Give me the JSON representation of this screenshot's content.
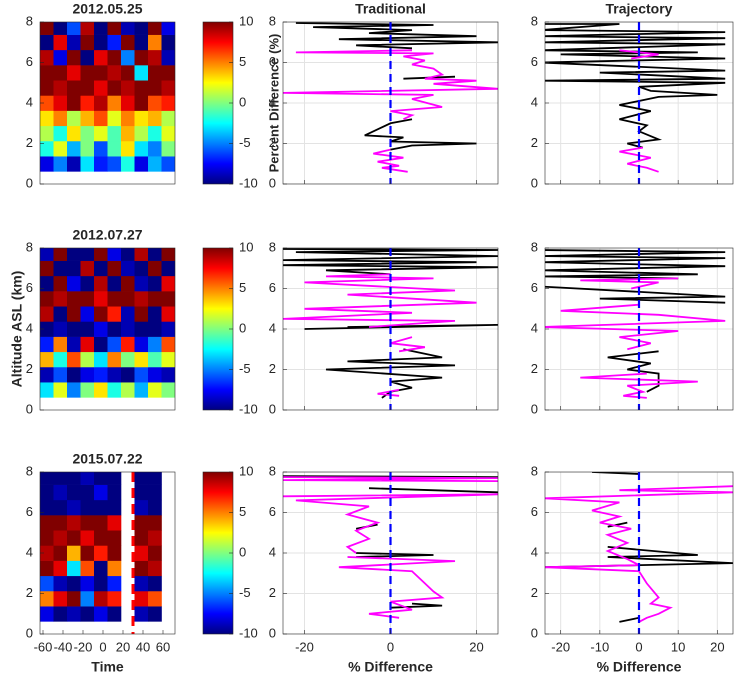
{
  "chart_data": [
    {
      "type": "heatmap",
      "title": "2012.05.25",
      "ylim": [
        0,
        8
      ],
      "yticks": [
        0,
        2,
        4,
        6,
        8
      ],
      "clim": [
        -10,
        10
      ],
      "cticks": [
        -10,
        -5,
        0,
        5,
        10
      ],
      "clabel": "Percent Difference (%)",
      "y": [
        1,
        1.75,
        2.5,
        3.25,
        4,
        4.75,
        5.5,
        6.25,
        7,
        7.75
      ],
      "z": [
        [
          -8,
          -5,
          -9,
          -3,
          -7,
          -6,
          -2,
          -8,
          -4,
          -6
        ],
        [
          -2,
          2,
          -4,
          0,
          -6,
          -1,
          3,
          -3,
          -5,
          0
        ],
        [
          1,
          -2,
          3,
          0,
          2,
          -1,
          4,
          1,
          -2,
          2
        ],
        [
          3,
          5,
          1,
          4,
          6,
          2,
          5,
          3,
          4,
          1
        ],
        [
          6,
          8,
          10,
          7,
          9,
          5,
          8,
          10,
          6,
          7
        ],
        [
          10,
          9,
          10,
          10,
          8,
          10,
          9,
          10,
          10,
          9
        ],
        [
          10,
          10,
          8,
          10,
          10,
          9,
          10,
          -3,
          10,
          10
        ],
        [
          9,
          -8,
          10,
          -10,
          8,
          10,
          -5,
          10,
          9,
          -9
        ],
        [
          -10,
          8,
          -9,
          10,
          -10,
          -7,
          10,
          -10,
          5,
          -10
        ],
        [
          10,
          -10,
          -6,
          9,
          -10,
          10,
          -9,
          -10,
          10,
          -8
        ]
      ]
    },
    {
      "type": "profile",
      "title": "Traditional",
      "xlim": [
        -25,
        25
      ],
      "xticks": [
        -20,
        0,
        20
      ],
      "xticklabels": false,
      "ylim": [
        0,
        8
      ],
      "yticks": [
        0,
        2,
        4,
        6,
        8
      ],
      "grid": true,
      "zero_line": {
        "x": 0,
        "color": "#0000ff"
      },
      "series": [
        {
          "color": "#000000",
          "x": [
            -22,
            10,
            -18,
            5,
            -5,
            20,
            -12,
            25,
            -8,
            5,
            null,
            15,
            3,
            null,
            5,
            0,
            -6,
            3,
            0,
            20,
            5,
            0
          ],
          "y": [
            7.95,
            7.85,
            7.75,
            7.6,
            7.45,
            7.3,
            7.15,
            7.0,
            6.85,
            6.7,
            null,
            5.3,
            5.2,
            null,
            3.2,
            3.0,
            2.4,
            2.3,
            2.1,
            2.0,
            1.9,
            1.7
          ]
        },
        {
          "color": "#ff00ff",
          "x": [
            5,
            -22,
            10,
            3,
            8,
            5,
            10,
            12,
            8,
            20,
            10,
            25,
            -25,
            10,
            5,
            12,
            0,
            5,
            3,
            null,
            0,
            -4,
            3,
            -3,
            2,
            -2,
            4
          ],
          "y": [
            6.6,
            6.5,
            6.45,
            6.3,
            6.1,
            5.9,
            5.7,
            5.4,
            5.2,
            5.1,
            4.95,
            4.7,
            4.5,
            4.4,
            4.2,
            3.8,
            3.6,
            3.4,
            3.2,
            null,
            1.7,
            1.5,
            1.3,
            1.1,
            0.9,
            0.8,
            0.6
          ]
        }
      ]
    },
    {
      "type": "profile",
      "title": "Trajectory",
      "xlim": [
        -24,
        24
      ],
      "xticks": [
        -20,
        -10,
        0,
        10,
        20
      ],
      "xticklabels": false,
      "ylim": [
        0,
        8
      ],
      "yticks": [
        0,
        2,
        4,
        6,
        8
      ],
      "grid": true,
      "zero_line": {
        "x": 0,
        "color": "#0000ff"
      },
      "series": [
        {
          "color": "#000000",
          "x": [
            -25,
            -5,
            -25,
            22,
            -25,
            22,
            -25,
            22,
            -25,
            15,
            -20,
            22,
            -25,
            22,
            -10,
            22,
            -25,
            22,
            0,
            3,
            20,
            5,
            -5,
            3,
            -5,
            2,
            0,
            5,
            -3,
            1
          ],
          "y": [
            7.9,
            7.9,
            7.6,
            7.5,
            7.3,
            7.2,
            7.0,
            6.9,
            6.6,
            6.5,
            6.4,
            6.2,
            6.0,
            5.6,
            5.5,
            5.2,
            5.1,
            5.0,
            4.8,
            4.6,
            4.4,
            4.3,
            3.9,
            3.6,
            3.2,
            2.9,
            2.6,
            2.2,
            2.0,
            1.8
          ]
        },
        {
          "color": "#ff00ff",
          "x": [
            -5,
            5,
            -2,
            null,
            1,
            -5,
            3,
            -3,
            2,
            5
          ],
          "y": [
            6.6,
            6.4,
            6.2,
            null,
            1.8,
            1.6,
            1.3,
            1.0,
            0.8,
            0.6
          ]
        }
      ]
    },
    {
      "type": "heatmap",
      "title": "2012.07.27",
      "ylabel": "Altitude ASL (km)",
      "ylim": [
        0,
        8
      ],
      "yticks": [
        0,
        2,
        4,
        6,
        8
      ],
      "clim": [
        -10,
        10
      ],
      "cticks": [
        -10,
        -5,
        0,
        5,
        10
      ],
      "y": [
        1,
        1.75,
        2.5,
        3.25,
        4,
        4.75,
        5.5,
        6.25,
        7,
        7.75
      ],
      "z": [
        [
          -3,
          2,
          -5,
          0,
          3,
          -2,
          1,
          -4,
          2,
          0
        ],
        [
          -9,
          -6,
          -10,
          -8,
          -7,
          -9,
          -10,
          -6,
          -8,
          -9
        ],
        [
          4,
          -2,
          6,
          1,
          -3,
          5,
          0,
          3,
          -1,
          2
        ],
        [
          -7,
          5,
          -9,
          8,
          -10,
          -6,
          7,
          -8,
          -5,
          6
        ],
        [
          -10,
          -9,
          -10,
          -10,
          -8,
          -10,
          -9,
          -10,
          -10,
          -9
        ],
        [
          9,
          -10,
          10,
          -8,
          10,
          7,
          -9,
          10,
          -10,
          8
        ],
        [
          10,
          9,
          10,
          10,
          8,
          10,
          10,
          9,
          10,
          10
        ],
        [
          -10,
          10,
          -8,
          -10,
          9,
          -10,
          10,
          -9,
          -10,
          8
        ],
        [
          10,
          -10,
          -10,
          9,
          -10,
          10,
          -9,
          -10,
          10,
          -10
        ],
        [
          -9,
          10,
          -10,
          -10,
          10,
          -8,
          -10,
          9,
          -10,
          10
        ]
      ]
    },
    {
      "type": "profile",
      "xlim": [
        -25,
        25
      ],
      "xticks": [
        -20,
        0,
        20
      ],
      "xticklabels": false,
      "ylim": [
        0,
        8
      ],
      "yticks": [
        0,
        2,
        4,
        6,
        8
      ],
      "grid": true,
      "zero_line": {
        "x": 0,
        "color": "#0000ff"
      },
      "series": [
        {
          "color": "#000000",
          "x": [
            -25,
            25,
            -22,
            25,
            -25,
            20,
            -25,
            25,
            -15,
            0,
            null,
            -10,
            25,
            -20,
            null,
            3,
            12,
            -10,
            15,
            -15,
            12,
            0,
            5,
            0,
            -2
          ],
          "y": [
            7.95,
            7.9,
            7.8,
            7.6,
            7.4,
            7.3,
            7.15,
            7.05,
            6.9,
            6.7,
            null,
            4.1,
            4.2,
            4.0,
            null,
            3.0,
            2.6,
            2.4,
            2.2,
            2.0,
            1.6,
            1.4,
            1.1,
            0.9,
            0.6
          ]
        },
        {
          "color": "#ff00ff",
          "x": [
            0,
            -15,
            10,
            -20,
            15,
            -10,
            20,
            -20,
            5,
            -25,
            15,
            -5,
            null,
            5,
            0,
            8,
            2,
            null,
            2,
            -3,
            2
          ],
          "y": [
            6.7,
            6.6,
            6.5,
            6.3,
            5.9,
            5.7,
            5.3,
            5.0,
            4.8,
            4.5,
            4.4,
            4.1,
            null,
            3.6,
            3.3,
            3.1,
            2.9,
            null,
            1.0,
            0.8,
            0.7
          ]
        }
      ]
    },
    {
      "type": "profile",
      "xlim": [
        -24,
        24
      ],
      "xticks": [
        -20,
        -10,
        0,
        10,
        20
      ],
      "xticklabels": false,
      "ylim": [
        0,
        8
      ],
      "yticks": [
        0,
        2,
        4,
        6,
        8
      ],
      "grid": true,
      "zero_line": {
        "x": 0,
        "color": "#0000ff"
      },
      "series": [
        {
          "color": "#000000",
          "x": [
            -25,
            22,
            -25,
            22,
            -25,
            22,
            -25,
            15,
            -25,
            10,
            null,
            -25,
            22,
            -10,
            22,
            null,
            5,
            -8,
            3,
            -3,
            5,
            5,
            2
          ],
          "y": [
            7.9,
            7.8,
            7.6,
            7.5,
            7.3,
            7.1,
            6.9,
            6.7,
            6.6,
            6.5,
            null,
            6.1,
            5.6,
            5.5,
            5.3,
            null,
            2.9,
            2.6,
            2.3,
            2.0,
            1.8,
            1.2,
            0.9
          ]
        },
        {
          "color": "#ff00ff",
          "x": [
            10,
            -15,
            5,
            -2,
            null,
            0,
            -20,
            5,
            22,
            -25,
            10,
            -5,
            3,
            -3,
            null,
            2,
            -15,
            15,
            -3,
            1,
            -4,
            2
          ],
          "y": [
            6.5,
            6.4,
            6.3,
            6.0,
            null,
            5.2,
            4.9,
            4.7,
            4.4,
            4.1,
            3.9,
            3.6,
            3.3,
            3.0,
            null,
            1.8,
            1.6,
            1.4,
            1.2,
            0.9,
            0.7,
            0.6
          ]
        }
      ]
    },
    {
      "type": "heatmap",
      "title": "2015.07.22",
      "xlabel": "Time",
      "xlim": [
        -63,
        72
      ],
      "xticks": [
        -60,
        -40,
        -20,
        0,
        20,
        40,
        60
      ],
      "ylim": [
        0,
        8
      ],
      "yticks": [
        0,
        2,
        4,
        6,
        8
      ],
      "clim": [
        -10,
        10
      ],
      "cticks": [
        -10,
        -5,
        0,
        5,
        10
      ],
      "vlines": [
        30
      ],
      "vline_color": "#ff0000",
      "y": [
        1,
        1.75,
        2.5,
        3.25,
        4,
        4.75,
        5.5,
        6.25,
        7,
        7.75
      ],
      "z": [
        [
          -8,
          -10,
          -9,
          -10,
          -8,
          -10,
          null,
          -9,
          -10,
          null
        ],
        [
          5,
          8,
          10,
          -5,
          9,
          7,
          null,
          8,
          6,
          null
        ],
        [
          -6,
          -9,
          -10,
          -8,
          -10,
          -7,
          null,
          -9,
          -10,
          null
        ],
        [
          10,
          8,
          -3,
          6,
          -10,
          5,
          null,
          10,
          9,
          null
        ],
        [
          9,
          10,
          4,
          10,
          7,
          10,
          null,
          8,
          10,
          null
        ],
        [
          10,
          9,
          10,
          8,
          10,
          10,
          null,
          10,
          9,
          null
        ],
        [
          10,
          10,
          9,
          10,
          10,
          8,
          null,
          10,
          10,
          null
        ],
        [
          -10,
          -10,
          -9,
          -10,
          -10,
          -10,
          null,
          -9,
          -10,
          null
        ],
        [
          -10,
          -9,
          -10,
          -10,
          -8,
          -10,
          null,
          -10,
          -10,
          null
        ],
        [
          -10,
          -10,
          -10,
          -9,
          -10,
          -10,
          null,
          -10,
          -10,
          null
        ]
      ]
    },
    {
      "type": "profile",
      "xlabel": "% Difference",
      "xlim": [
        -25,
        25
      ],
      "xticks": [
        -20,
        0,
        20
      ],
      "ylim": [
        0,
        8
      ],
      "yticks": [
        0,
        2,
        4,
        6,
        8
      ],
      "grid": true,
      "zero_line": {
        "x": 0,
        "color": "#0000ff"
      },
      "series": [
        {
          "color": "#000000",
          "x": [
            -25,
            25,
            null,
            -5,
            25,
            null,
            -3,
            -8,
            null,
            -8,
            10,
            -8,
            null,
            5,
            12,
            0
          ],
          "y": [
            7.8,
            7.75,
            null,
            7.2,
            7.0,
            null,
            5.4,
            5.2,
            null,
            4.0,
            3.9,
            3.8,
            null,
            1.5,
            1.4,
            1.3
          ]
        },
        {
          "color": "#ff00ff",
          "x": [
            -25,
            25,
            -25,
            25,
            null,
            -25,
            25,
            -22,
            -5,
            -10,
            -3,
            -8,
            -5,
            -10,
            -8,
            null,
            -10,
            15,
            -12,
            5,
            8,
            10,
            12,
            0,
            5,
            -5,
            2
          ],
          "y": [
            7.75,
            7.7,
            7.6,
            7.55,
            null,
            6.8,
            6.9,
            6.6,
            6.3,
            5.9,
            5.5,
            5.1,
            4.7,
            4.3,
            4.0,
            null,
            3.8,
            3.6,
            3.3,
            3.1,
            2.5,
            2.1,
            1.8,
            1.6,
            1.2,
            1.0,
            0.8
          ]
        }
      ]
    },
    {
      "type": "profile",
      "xlabel": "% Difference",
      "xlim": [
        -24,
        24
      ],
      "xticks": [
        -20,
        -10,
        0,
        10,
        20
      ],
      "ylim": [
        0,
        8
      ],
      "yticks": [
        0,
        2,
        4,
        6,
        8
      ],
      "grid": true,
      "zero_line": {
        "x": 0,
        "color": "#0000ff"
      },
      "series": [
        {
          "color": "#000000",
          "x": [
            -12,
            0,
            null,
            -3,
            -8,
            null,
            -8,
            15,
            -8,
            24,
            -24,
            null,
            0,
            -5
          ],
          "y": [
            8.0,
            7.9,
            null,
            5.5,
            5.3,
            null,
            4.3,
            3.9,
            3.8,
            3.5,
            3.3,
            null,
            0.8,
            0.6
          ]
        },
        {
          "color": "#ff00ff",
          "x": [
            24,
            -5,
            24,
            -24,
            -5,
            -12,
            -5,
            -10,
            -2,
            -8,
            -3,
            -8,
            -3,
            0,
            -24,
            0,
            2,
            5,
            3,
            8,
            5,
            2,
            0
          ],
          "y": [
            7.3,
            7.1,
            7.0,
            6.7,
            6.5,
            6.1,
            5.8,
            5.5,
            5.2,
            4.9,
            4.5,
            4.1,
            3.7,
            3.4,
            3.3,
            3.1,
            2.5,
            1.8,
            1.5,
            1.3,
            1.0,
            0.8,
            0.6
          ]
        }
      ]
    }
  ]
}
